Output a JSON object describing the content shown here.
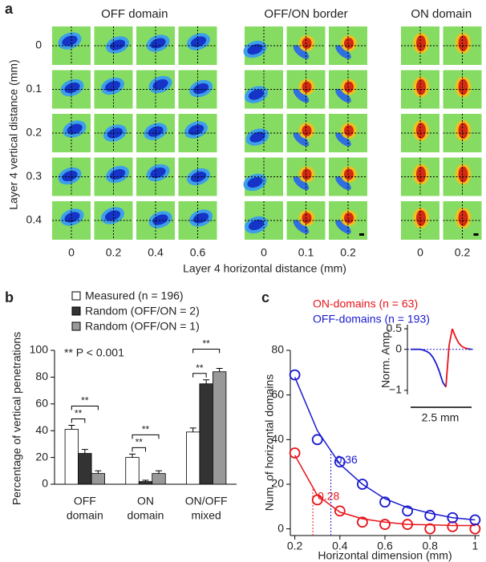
{
  "chart_data": [
    {
      "type": "image-grid",
      "panel_label": "a",
      "groups": [
        {
          "title": "OFF domain",
          "xticks": [
            0,
            0.2,
            0.4,
            0.6
          ]
        },
        {
          "title": "OFF/ON border",
          "xticks": [
            0,
            0.1,
            0.2
          ]
        },
        {
          "title": "ON domain",
          "xticks": [
            0,
            0.2
          ]
        }
      ],
      "yticks": [
        0,
        0.1,
        0.2,
        0.3,
        0.4
      ],
      "xlabel": "Layer 4 horizontal distance (mm)",
      "ylabel": "Layer 4 vertical distance (mm)"
    },
    {
      "type": "bar",
      "panel_label": "b",
      "categories": [
        [
          "OFF",
          "domain"
        ],
        [
          "ON",
          "domain"
        ],
        [
          "ON/OFF",
          "mixed"
        ]
      ],
      "series": [
        {
          "name": "Measured (n = 196)",
          "color": "#ffffff",
          "values": [
            41,
            20,
            39
          ],
          "errors": [
            3,
            2.5,
            3
          ]
        },
        {
          "name": "Random (OFF/ON = 2)",
          "color": "#333333",
          "values": [
            23,
            2,
            75
          ],
          "errors": [
            3,
            1,
            3
          ]
        },
        {
          "name": "Random (OFF/ON = 1)",
          "color": "#999999",
          "values": [
            8,
            8,
            84
          ],
          "errors": [
            2,
            2,
            2.5
          ]
        }
      ],
      "significance": [
        [
          "**",
          "**"
        ],
        [
          "**",
          "**"
        ],
        [
          "**",
          "**"
        ]
      ],
      "annotation": "** P < 0.001",
      "ylabel": "Percentage of vertical penetrations",
      "ylim": [
        0,
        100
      ],
      "yticks": [
        0,
        20,
        40,
        60,
        80,
        100
      ]
    },
    {
      "type": "scatter",
      "panel_label": "c",
      "x": [
        0.2,
        0.3,
        0.4,
        0.5,
        0.6,
        0.7,
        0.8,
        0.9,
        1
      ],
      "series": [
        {
          "name": "ON-domains (n = 63)",
          "color": "#e8141a",
          "values": [
            34,
            13,
            8,
            3,
            2,
            2,
            0,
            1,
            0
          ],
          "fit": [
            33,
            15,
            7.5,
            4.5,
            3,
            2,
            1.8,
            1.5,
            1.5
          ],
          "length_constant": 0.28
        },
        {
          "name": "OFF-domains (n = 193)",
          "color": "#1a1ad0",
          "values": [
            69,
            40,
            30,
            20,
            12,
            8,
            6,
            5,
            4
          ],
          "fit": [
            68,
            44,
            29,
            20,
            13.5,
            9.5,
            7,
            5,
            4
          ],
          "length_constant": 0.36
        }
      ],
      "xlabel": "Horizontal dimension (mm)",
      "ylabel": "Num. of horizontal domains",
      "xlim": [
        0.18,
        1.02
      ],
      "xticks": [
        0.2,
        0.4,
        0.6,
        0.8,
        1
      ],
      "ylim": [
        -3,
        80
      ],
      "yticks": [
        0,
        20,
        40,
        60,
        80
      ],
      "inset": {
        "ylabel": "Norm. Amp.",
        "ylim": [
          -1.1,
          0.6
        ],
        "yticks": [
          0.5,
          0,
          {
            "value": -1,
            "label": "−1"
          }
        ],
        "scale_label": "2.5 mm",
        "values": [
          0,
          0,
          0,
          0,
          -0.02,
          -0.05,
          -0.1,
          -0.2,
          -0.35,
          -0.55,
          -0.8,
          -0.92,
          0.1,
          0.5,
          0.3,
          0.15,
          0.07,
          0.03,
          0.01,
          0
        ]
      }
    }
  ]
}
